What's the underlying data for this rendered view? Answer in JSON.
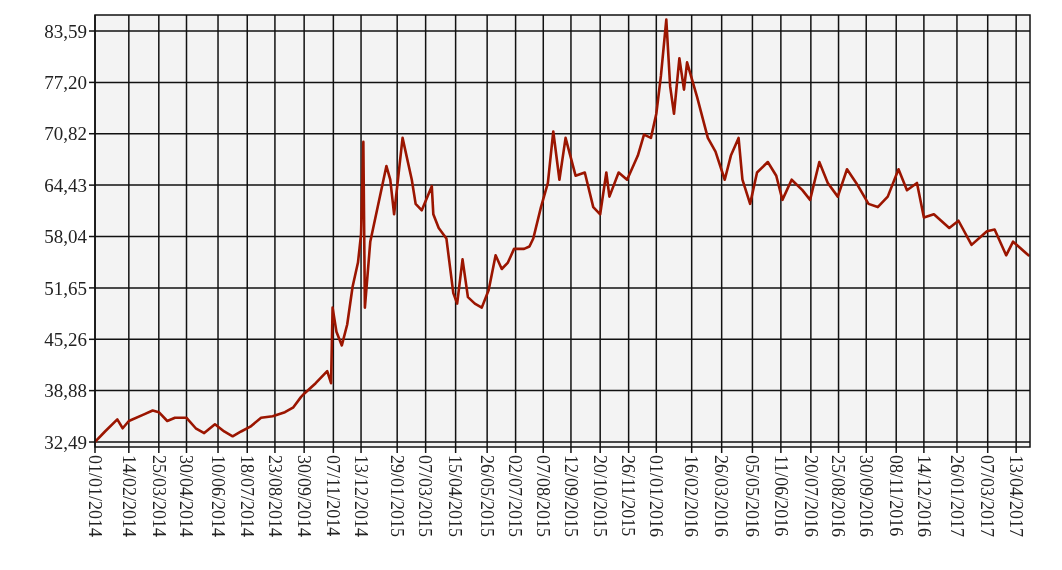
{
  "chart_data": {
    "type": "line",
    "x": [
      "2014-01-01",
      "2014-01-14",
      "2014-01-30",
      "2014-02-06",
      "2014-02-14",
      "2014-03-05",
      "2014-03-17",
      "2014-03-25",
      "2014-04-05",
      "2014-04-15",
      "2014-04-30",
      "2014-05-12",
      "2014-05-23",
      "2014-06-06",
      "2014-06-18",
      "2014-06-29",
      "2014-07-10",
      "2014-07-22",
      "2014-08-05",
      "2014-08-20",
      "2014-09-05",
      "2014-09-16",
      "2014-09-26",
      "2014-09-30",
      "2014-10-15",
      "2014-10-30",
      "2014-11-04",
      "2014-11-06",
      "2014-11-11",
      "2014-11-18",
      "2014-11-25",
      "2014-12-02",
      "2014-12-09",
      "2014-12-13",
      "2014-12-16",
      "2014-12-18",
      "2014-12-25",
      "2015-01-15",
      "2015-01-20",
      "2015-01-25",
      "2015-02-05",
      "2015-02-17",
      "2015-02-22",
      "2015-03-02",
      "2015-03-15",
      "2015-03-17",
      "2015-03-24",
      "2015-04-03",
      "2015-04-12",
      "2015-04-17",
      "2015-04-24",
      "2015-05-01",
      "2015-05-10",
      "2015-05-19",
      "2015-05-28",
      "2015-06-06",
      "2015-06-14",
      "2015-06-22",
      "2015-06-30",
      "2015-07-13",
      "2015-07-20",
      "2015-07-25",
      "2015-08-04",
      "2015-08-13",
      "2015-08-20",
      "2015-08-28",
      "2015-09-05",
      "2015-09-18",
      "2015-09-30",
      "2015-10-11",
      "2015-10-20",
      "2015-10-28",
      "2015-11-01",
      "2015-11-13",
      "2015-11-24",
      "2015-12-08",
      "2015-12-16",
      "2015-12-25",
      "2016-01-01",
      "2016-01-07",
      "2016-01-14",
      "2016-01-19",
      "2016-01-24",
      "2016-01-31",
      "2016-02-06",
      "2016-02-10",
      "2016-02-23",
      "2016-03-08",
      "2016-03-18",
      "2016-03-30",
      "2016-04-07",
      "2016-04-17",
      "2016-04-22",
      "2016-05-02",
      "2016-05-11",
      "2016-05-25",
      "2016-06-05",
      "2016-06-13",
      "2016-06-25",
      "2016-07-09",
      "2016-07-19",
      "2016-07-31",
      "2016-08-11",
      "2016-08-24",
      "2016-09-05",
      "2016-09-17",
      "2016-10-03",
      "2016-10-15",
      "2016-10-28",
      "2016-11-11",
      "2016-11-22",
      "2016-12-05",
      "2016-12-14",
      "2016-12-27",
      "2017-01-16",
      "2017-01-28",
      "2017-02-14",
      "2017-03-06",
      "2017-03-16",
      "2017-03-31",
      "2017-04-09",
      "2017-04-29"
    ],
    "series": [
      {
        "color": "#9b1500",
        "values": [
          32.5,
          33.8,
          35.3,
          34.2,
          35.1,
          35.9,
          36.4,
          36.2,
          35.1,
          35.5,
          35.5,
          34.2,
          33.6,
          34.7,
          33.8,
          33.2,
          33.8,
          34.4,
          35.5,
          35.7,
          36.2,
          36.8,
          38.1,
          38.5,
          39.8,
          41.3,
          39.8,
          49.2,
          46.2,
          44.5,
          47.1,
          51.8,
          54.8,
          58.3,
          69.8,
          49.2,
          57.4,
          66.8,
          65.1,
          60.8,
          70.3,
          65.1,
          62.1,
          61.3,
          64.3,
          60.8,
          59.1,
          57.8,
          51.0,
          49.7,
          55.2,
          50.5,
          49.7,
          49.2,
          51.4,
          55.7,
          54.0,
          54.8,
          56.5,
          56.5,
          56.8,
          57.8,
          61.7,
          64.7,
          71.1,
          65.1,
          70.3,
          65.6,
          66.0,
          61.7,
          60.8,
          66.0,
          63.0,
          66.0,
          65.1,
          68.1,
          70.7,
          70.3,
          73.3,
          78.0,
          85.0,
          76.7,
          73.3,
          80.2,
          76.3,
          79.7,
          75.4,
          70.3,
          68.6,
          65.1,
          68.1,
          70.3,
          65.1,
          62.1,
          66.0,
          67.3,
          65.6,
          62.6,
          65.1,
          63.8,
          62.6,
          67.3,
          64.7,
          63.0,
          66.4,
          64.7,
          62.1,
          61.7,
          63.0,
          66.4,
          63.8,
          64.7,
          60.4,
          60.8,
          59.1,
          60.0,
          57.0,
          58.7,
          58.9,
          55.7,
          57.4,
          55.7
        ]
      }
    ],
    "xlim": [
      "2014-01-01",
      "2017-05-01"
    ],
    "xticks": [
      {
        "value": "2014-01-01",
        "label": "01/01/2014"
      },
      {
        "value": "2014-02-14",
        "label": "14/02/2014"
      },
      {
        "value": "2014-03-25",
        "label": "25/03/2014"
      },
      {
        "value": "2014-04-30",
        "label": "30/04/2014"
      },
      {
        "value": "2014-06-10",
        "label": "10/06/2014"
      },
      {
        "value": "2014-07-18",
        "label": "18/07/2014"
      },
      {
        "value": "2014-08-23",
        "label": "23/08/2014"
      },
      {
        "value": "2014-09-30",
        "label": "30/09/2014"
      },
      {
        "value": "2014-11-07",
        "label": "07/11/2014"
      },
      {
        "value": "2014-12-13",
        "label": "13/12/2014"
      },
      {
        "value": "2015-01-29",
        "label": "29/01/2015"
      },
      {
        "value": "2015-03-07",
        "label": "07/03/2015"
      },
      {
        "value": "2015-04-15",
        "label": "15/04/2015"
      },
      {
        "value": "2015-05-26",
        "label": "26/05/2015"
      },
      {
        "value": "2015-07-02",
        "label": "02/07/2015"
      },
      {
        "value": "2015-08-07",
        "label": "07/08/2015"
      },
      {
        "value": "2015-09-12",
        "label": "12/09/2015"
      },
      {
        "value": "2015-10-20",
        "label": "20/10/2015"
      },
      {
        "value": "2015-11-26",
        "label": "26/11/2015"
      },
      {
        "value": "2016-01-01",
        "label": "01/01/2016"
      },
      {
        "value": "2016-02-16",
        "label": "16/02/2016"
      },
      {
        "value": "2016-03-26",
        "label": "26/03/2016"
      },
      {
        "value": "2016-05-05",
        "label": "05/05/2016"
      },
      {
        "value": "2016-06-11",
        "label": "11/06/2016"
      },
      {
        "value": "2016-07-20",
        "label": "20/07/2016"
      },
      {
        "value": "2016-08-25",
        "label": "25/08/2016"
      },
      {
        "value": "2016-09-30",
        "label": "30/09/2016"
      },
      {
        "value": "2016-11-08",
        "label": "08/11/2016"
      },
      {
        "value": "2016-12-14",
        "label": "14/12/2016"
      },
      {
        "value": "2017-01-26",
        "label": "26/01/2017"
      },
      {
        "value": "2017-03-07",
        "label": "07/03/2017"
      },
      {
        "value": "2017-04-13",
        "label": "13/04/2017"
      }
    ],
    "ylim": [
      31.87,
      85.58
    ],
    "yticks": [
      {
        "value": 32.49,
        "label": "32,49"
      },
      {
        "value": 38.88,
        "label": "38,88"
      },
      {
        "value": 45.26,
        "label": "45,26"
      },
      {
        "value": 51.65,
        "label": "51,65"
      },
      {
        "value": 58.04,
        "label": "58,04"
      },
      {
        "value": 64.43,
        "label": "64,43"
      },
      {
        "value": 70.82,
        "label": "70,82"
      },
      {
        "value": 77.2,
        "label": "77,20"
      },
      {
        "value": 83.59,
        "label": "83,59"
      }
    ],
    "grid": true
  }
}
